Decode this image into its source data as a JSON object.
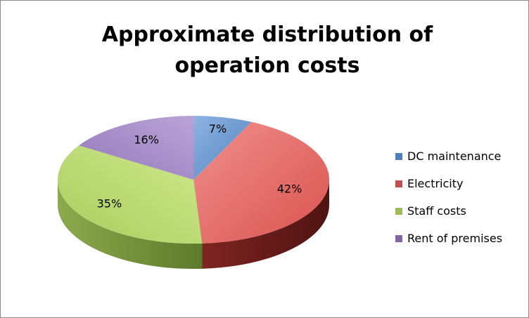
{
  "chart_data": {
    "type": "pie",
    "title": "Approximate distribution of operation costs",
    "categories": [
      "DC maintenance",
      "Electricity",
      "Staff costs",
      "Rent of premises"
    ],
    "values": [
      7,
      42,
      35,
      16
    ],
    "labels": [
      "7%",
      "42%",
      "35%",
      "16%"
    ],
    "colors": [
      "#4f81bd",
      "#c0504d",
      "#9bbb59",
      "#8064a2"
    ],
    "legend": "right",
    "style": "3d-pie"
  }
}
